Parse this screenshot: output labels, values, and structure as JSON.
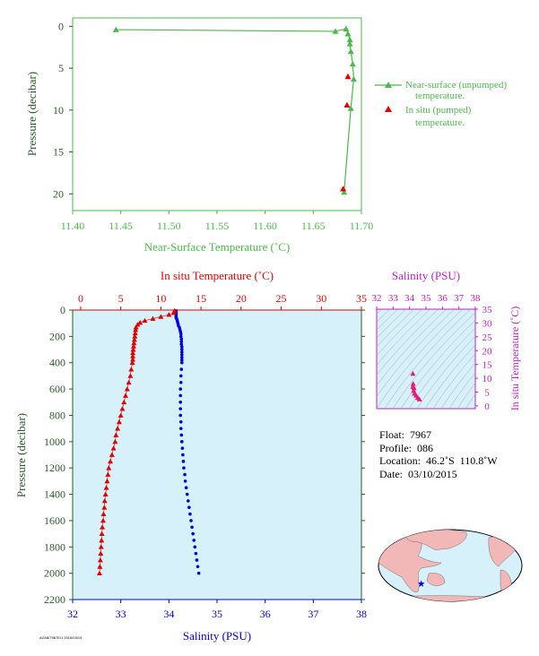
{
  "chart_data": [
    {
      "id": "near_surface",
      "type": "line",
      "xlabel": "Near-Surface Temperature (˚C)",
      "ylabel": "Pressure (decibar)",
      "xlim": [
        11.4,
        11.7
      ],
      "ylim": [
        22,
        -1
      ],
      "x_ticks": [
        "11.40",
        "11.45",
        "11.50",
        "11.55",
        "11.60",
        "11.65",
        "11.70"
      ],
      "y_ticks": [
        "0",
        "5",
        "10",
        "15",
        "20"
      ],
      "legend_position": "right",
      "series": [
        {
          "name": "Near-surface (unpumped) temperature.",
          "color": "#4cb94c",
          "marker": "triangle-open",
          "points": [
            [
              11.445,
              0.4
            ],
            [
              11.673,
              0.6
            ],
            [
              11.684,
              0.3
            ],
            [
              11.686,
              0.9
            ],
            [
              11.688,
              1.6
            ],
            [
              11.688,
              2.1
            ],
            [
              11.689,
              3.0
            ],
            [
              11.691,
              4.5
            ],
            [
              11.692,
              6.3
            ],
            [
              11.689,
              9.8
            ],
            [
              11.682,
              19.8
            ]
          ]
        },
        {
          "name": "In situ (pumped) temperature.",
          "color": "#e00000",
          "marker": "triangle-filled",
          "points": [
            [
              11.686,
              6.0
            ],
            [
              11.685,
              9.4
            ],
            [
              11.681,
              19.4
            ]
          ]
        }
      ]
    },
    {
      "id": "profile",
      "type": "scatter",
      "top_axis_label": "In situ Temperature (˚C)",
      "top_axis_ticks": [
        "0",
        "5",
        "10",
        "15",
        "20",
        "25",
        "30",
        "35"
      ],
      "top_axis_range": [
        -1,
        35
      ],
      "bottom_axis_label": "Salinity (PSU)",
      "bottom_axis_ticks": [
        "32",
        "33",
        "34",
        "35",
        "36",
        "37",
        "38"
      ],
      "bottom_axis_range": [
        32,
        38
      ],
      "ylabel": "Pressure (decibar)",
      "y_ticks": [
        "0",
        "200",
        "400",
        "600",
        "800",
        "1000",
        "1200",
        "1400",
        "1600",
        "1800",
        "2000",
        "2200"
      ],
      "ylim": [
        2200,
        0
      ],
      "background": "#d6f1fa",
      "series": [
        {
          "name": "temperature",
          "color": "#e00000",
          "marker": "triangle-filled",
          "points": [
            [
              11.7,
              5
            ],
            [
              11.6,
              20
            ],
            [
              11.0,
              35
            ],
            [
              10.0,
              50
            ],
            [
              9.0,
              65
            ],
            [
              8.0,
              80
            ],
            [
              7.4,
              95
            ],
            [
              7.1,
              110
            ],
            [
              6.9,
              130
            ],
            [
              6.85,
              150
            ],
            [
              6.8,
              175
            ],
            [
              6.75,
              200
            ],
            [
              6.7,
              225
            ],
            [
              6.65,
              250
            ],
            [
              6.6,
              275
            ],
            [
              6.55,
              300
            ],
            [
              6.5,
              325
            ],
            [
              6.5,
              350
            ],
            [
              6.5,
              375
            ],
            [
              6.45,
              400
            ],
            [
              6.3,
              450
            ],
            [
              6.2,
              500
            ],
            [
              6.0,
              550
            ],
            [
              5.8,
              600
            ],
            [
              5.6,
              650
            ],
            [
              5.4,
              700
            ],
            [
              5.2,
              750
            ],
            [
              5.0,
              800
            ],
            [
              4.8,
              850
            ],
            [
              4.6,
              900
            ],
            [
              4.4,
              950
            ],
            [
              4.3,
              1000
            ],
            [
              4.1,
              1050
            ],
            [
              3.9,
              1100
            ],
            [
              3.7,
              1150
            ],
            [
              3.5,
              1200
            ],
            [
              3.4,
              1250
            ],
            [
              3.3,
              1300
            ],
            [
              3.2,
              1350
            ],
            [
              3.1,
              1400
            ],
            [
              3.0,
              1450
            ],
            [
              2.95,
              1500
            ],
            [
              2.85,
              1550
            ],
            [
              2.8,
              1600
            ],
            [
              2.7,
              1650
            ],
            [
              2.65,
              1700
            ],
            [
              2.6,
              1750
            ],
            [
              2.55,
              1800
            ],
            [
              2.5,
              1850
            ],
            [
              2.45,
              1900
            ],
            [
              2.4,
              1950
            ],
            [
              2.35,
              2000
            ]
          ]
        },
        {
          "name": "salinity",
          "color": "#0000dd",
          "marker": "dot",
          "points": [
            [
              34.15,
              5
            ],
            [
              34.15,
              15
            ],
            [
              34.15,
              25
            ],
            [
              34.15,
              35
            ],
            [
              34.15,
              45
            ],
            [
              34.15,
              55
            ],
            [
              34.16,
              65
            ],
            [
              34.17,
              75
            ],
            [
              34.18,
              90
            ],
            [
              34.19,
              105
            ],
            [
              34.2,
              120
            ],
            [
              34.22,
              135
            ],
            [
              34.23,
              150
            ],
            [
              34.24,
              165
            ],
            [
              34.25,
              180
            ],
            [
              34.25,
              200
            ],
            [
              34.26,
              220
            ],
            [
              34.26,
              240
            ],
            [
              34.26,
              260
            ],
            [
              34.27,
              280
            ],
            [
              34.27,
              300
            ],
            [
              34.27,
              320
            ],
            [
              34.27,
              340
            ],
            [
              34.27,
              360
            ],
            [
              34.27,
              380
            ],
            [
              34.27,
              400
            ],
            [
              34.26,
              450
            ],
            [
              34.25,
              500
            ],
            [
              34.25,
              550
            ],
            [
              34.24,
              600
            ],
            [
              34.24,
              650
            ],
            [
              34.24,
              700
            ],
            [
              34.24,
              750
            ],
            [
              34.24,
              800
            ],
            [
              34.25,
              850
            ],
            [
              34.25,
              900
            ],
            [
              34.26,
              950
            ],
            [
              34.27,
              1000
            ],
            [
              34.28,
              1050
            ],
            [
              34.29,
              1100
            ],
            [
              34.3,
              1150
            ],
            [
              34.31,
              1200
            ],
            [
              34.33,
              1250
            ],
            [
              34.34,
              1300
            ],
            [
              34.36,
              1350
            ],
            [
              34.38,
              1400
            ],
            [
              34.4,
              1450
            ],
            [
              34.42,
              1500
            ],
            [
              34.44,
              1550
            ],
            [
              34.46,
              1600
            ],
            [
              34.48,
              1650
            ],
            [
              34.5,
              1700
            ],
            [
              34.52,
              1750
            ],
            [
              34.54,
              1800
            ],
            [
              34.56,
              1850
            ],
            [
              34.58,
              1900
            ],
            [
              34.6,
              1950
            ],
            [
              34.62,
              2000
            ]
          ]
        }
      ]
    },
    {
      "id": "ts_diagram",
      "type": "scatter",
      "top_axis_label": "Salinity (PSU)",
      "x_ticks": [
        "32",
        "33",
        "34",
        "35",
        "36",
        "37",
        "38"
      ],
      "xlim": [
        32,
        38
      ],
      "right_axis_label": "In situ Temperature (˚C)",
      "y_ticks": [
        "0",
        "5",
        "10",
        "15",
        "20",
        "25",
        "30",
        "35"
      ],
      "ylim": [
        -1,
        35
      ],
      "series": [
        {
          "name": "ts",
          "color": "#e6197a",
          "points": [
            [
              34.2,
              11.7
            ],
            [
              34.27,
              6.5
            ],
            [
              34.25,
              5.5
            ],
            [
              34.3,
              4.5
            ],
            [
              34.4,
              3.8
            ],
            [
              34.5,
              3.0
            ],
            [
              34.6,
              2.4
            ],
            [
              34.2,
              7.0
            ],
            [
              34.22,
              8.0
            ]
          ]
        }
      ]
    }
  ],
  "info": {
    "float": "Float:  7967",
    "profile": "Profile:  086",
    "location": "Location:  46.2˚S  110.8˚W",
    "date": "Date:  03/10/2015"
  },
  "map": {
    "land_color": "#f2b8b8",
    "ocean_color": "#d6f1fa",
    "marker_color": "#0000dd",
    "marker": "star",
    "marker_lon": -110.8,
    "marker_lat": -46.2
  },
  "footer_code": "AG08/7967E/1 2015/03/19"
}
